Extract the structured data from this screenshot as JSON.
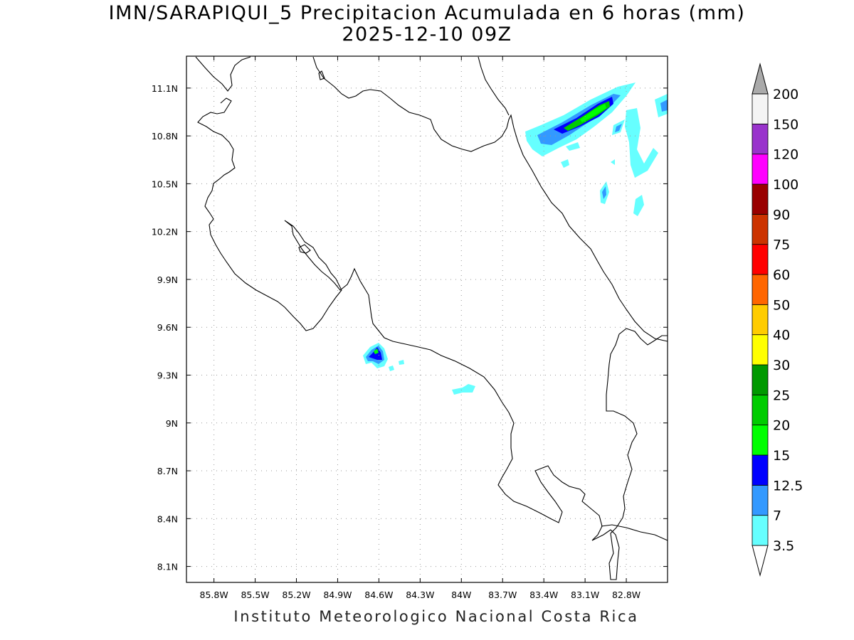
{
  "title_line1": "IMN/SARAPIQUI_5 Precipitacion Acumulada en 6 horas (mm)",
  "title_line2": "2025-12-10 09Z",
  "footer": "Instituto Meteorologico Nacional Costa Rica",
  "map": {
    "lon_range": [
      -86.0,
      -82.5
    ],
    "lat_range": [
      8.0,
      11.3
    ],
    "lon_ticks": [
      "85.8W",
      "85.5W",
      "85.2W",
      "84.9W",
      "84.6W",
      "84.3W",
      "84W",
      "83.7W",
      "83.4W",
      "83.1W",
      "82.8W"
    ],
    "lat_ticks": [
      "8.1N",
      "8.4N",
      "8.7N",
      "9N",
      "9.3N",
      "9.6N",
      "9.9N",
      "10.2N",
      "10.5N",
      "10.8N",
      "11.1N"
    ],
    "grid": "dotted"
  },
  "colorbar": {
    "labels": [
      "3.5",
      "7",
      "12.5",
      "15",
      "20",
      "25",
      "30",
      "40",
      "50",
      "60",
      "75",
      "90",
      "100",
      "120",
      "150",
      "200"
    ],
    "colors": [
      "#ffffff",
      "#66ffff",
      "#3399ff",
      "#0000ff",
      "#00ff00",
      "#00cc00",
      "#009900",
      "#ffff00",
      "#ffcc00",
      "#ff6600",
      "#ff0000",
      "#cc3300",
      "#990000",
      "#ff00ff",
      "#9933cc",
      "#f4f4f4",
      "#aaaaaa"
    ]
  }
}
